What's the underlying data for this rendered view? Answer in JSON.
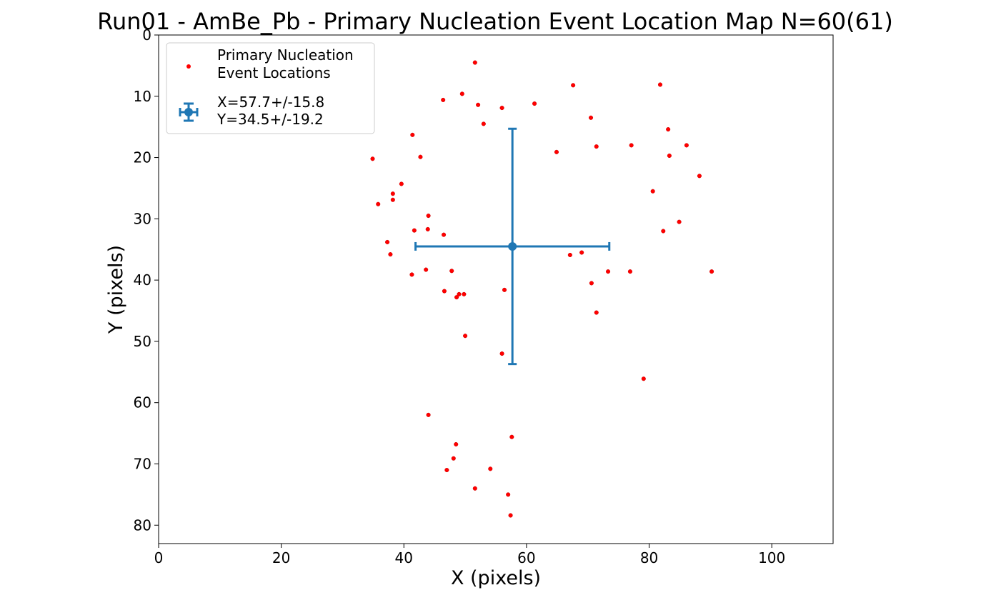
{
  "chart_data": {
    "type": "scatter",
    "title": "Run01 - AmBe_Pb - Primary Nucleation Event Location Map N=60(61)",
    "xlabel": "X (pixels)",
    "ylabel": "Y (pixels)",
    "xlim": [
      0,
      110
    ],
    "ylim": [
      83,
      0
    ],
    "y_inverted": true,
    "xticks": [
      0,
      20,
      40,
      60,
      80,
      100
    ],
    "yticks": [
      0,
      10,
      20,
      30,
      40,
      50,
      60,
      70,
      80
    ],
    "grid": false,
    "legend_position": "top-left",
    "legend": [
      {
        "label_line1": "Primary Nucleation",
        "label_line2": "Event Locations",
        "marker": "red-dot"
      },
      {
        "label_line1": "X=57.7+/-15.8",
        "label_line2": "Y=34.5+/-19.2",
        "marker": "errorbar"
      }
    ],
    "colors": {
      "points": "#ff0000",
      "points_edge": "#cc0000",
      "errorbar": "#1f77b4"
    },
    "summary": {
      "x": 57.7,
      "xerr": 15.8,
      "y": 34.5,
      "yerr": 19.2
    },
    "series": [
      {
        "name": "Primary Nucleation Event Locations",
        "points": [
          [
            51.6,
            4.5
          ],
          [
            67.6,
            8.2
          ],
          [
            81.8,
            8.1
          ],
          [
            49.5,
            9.6
          ],
          [
            46.4,
            10.6
          ],
          [
            52.1,
            11.4
          ],
          [
            56.0,
            11.9
          ],
          [
            61.3,
            11.2
          ],
          [
            70.5,
            13.5
          ],
          [
            53.0,
            14.5
          ],
          [
            83.1,
            15.4
          ],
          [
            41.4,
            16.3
          ],
          [
            77.1,
            18.0
          ],
          [
            71.4,
            18.2
          ],
          [
            86.1,
            18.0
          ],
          [
            64.9,
            19.1
          ],
          [
            83.3,
            19.7
          ],
          [
            42.7,
            19.9
          ],
          [
            34.9,
            20.2
          ],
          [
            88.2,
            23.0
          ],
          [
            39.6,
            24.3
          ],
          [
            80.6,
            25.5
          ],
          [
            38.2,
            25.9
          ],
          [
            38.2,
            26.9
          ],
          [
            35.8,
            27.6
          ],
          [
            44.0,
            29.5
          ],
          [
            84.9,
            30.5
          ],
          [
            43.9,
            31.7
          ],
          [
            41.7,
            31.9
          ],
          [
            82.3,
            32.0
          ],
          [
            46.5,
            32.6
          ],
          [
            37.3,
            33.8
          ],
          [
            37.8,
            35.8
          ],
          [
            67.1,
            35.9
          ],
          [
            69.0,
            35.5
          ],
          [
            43.6,
            38.3
          ],
          [
            47.8,
            38.5
          ],
          [
            73.3,
            38.6
          ],
          [
            76.9,
            38.6
          ],
          [
            90.2,
            38.6
          ],
          [
            41.3,
            39.1
          ],
          [
            70.6,
            40.5
          ],
          [
            56.4,
            41.6
          ],
          [
            46.6,
            41.8
          ],
          [
            49.0,
            42.3
          ],
          [
            49.8,
            42.3
          ],
          [
            48.6,
            42.8
          ],
          [
            71.4,
            45.3
          ],
          [
            50.0,
            49.1
          ],
          [
            56.0,
            52.0
          ],
          [
            79.1,
            56.1
          ],
          [
            44.0,
            62.0
          ],
          [
            57.6,
            65.6
          ],
          [
            48.5,
            66.8
          ],
          [
            48.1,
            69.1
          ],
          [
            47.0,
            71.0
          ],
          [
            54.1,
            70.8
          ],
          [
            51.6,
            74.0
          ],
          [
            57.0,
            75.0
          ],
          [
            57.4,
            78.4
          ]
        ]
      }
    ]
  }
}
